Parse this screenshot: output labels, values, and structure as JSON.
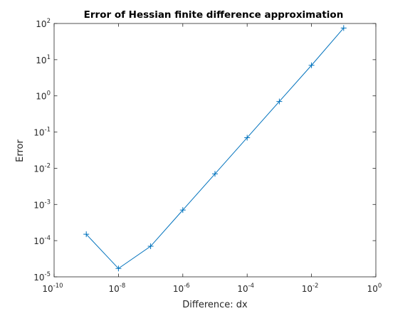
{
  "chart_data": {
    "type": "line",
    "title": "Error of Hessian finite difference approximation",
    "xlabel": "Difference: dx",
    "ylabel": "Error",
    "xscale": "log",
    "yscale": "log",
    "xlim": [
      1e-10,
      1
    ],
    "ylim": [
      1e-05,
      100
    ],
    "grid": false,
    "legend": "none",
    "marker": "+",
    "color": "#0072BD",
    "x_ticks": [
      {
        "value": 1e-10,
        "base": "10",
        "exp": "-10"
      },
      {
        "value": 1e-08,
        "base": "10",
        "exp": "-8"
      },
      {
        "value": 1e-06,
        "base": "10",
        "exp": "-6"
      },
      {
        "value": 0.0001,
        "base": "10",
        "exp": "-4"
      },
      {
        "value": 0.01,
        "base": "10",
        "exp": "-2"
      },
      {
        "value": 1,
        "base": "10",
        "exp": "0"
      }
    ],
    "y_ticks": [
      {
        "value": 1e-05,
        "base": "10",
        "exp": "-5"
      },
      {
        "value": 0.0001,
        "base": "10",
        "exp": "-4"
      },
      {
        "value": 0.001,
        "base": "10",
        "exp": "-3"
      },
      {
        "value": 0.01,
        "base": "10",
        "exp": "-2"
      },
      {
        "value": 0.1,
        "base": "10",
        "exp": "-1"
      },
      {
        "value": 1,
        "base": "10",
        "exp": "0"
      },
      {
        "value": 10,
        "base": "10",
        "exp": "1"
      },
      {
        "value": 100,
        "base": "10",
        "exp": "2"
      }
    ],
    "series": [
      {
        "x": [
          1e-09,
          1e-08,
          1e-07,
          1e-06,
          1e-05,
          0.0001,
          0.001,
          0.01,
          0.1
        ],
        "y": [
          0.00015,
          1.7e-05,
          7e-05,
          0.0007,
          0.007,
          0.07,
          0.7,
          7,
          75
        ]
      }
    ]
  }
}
